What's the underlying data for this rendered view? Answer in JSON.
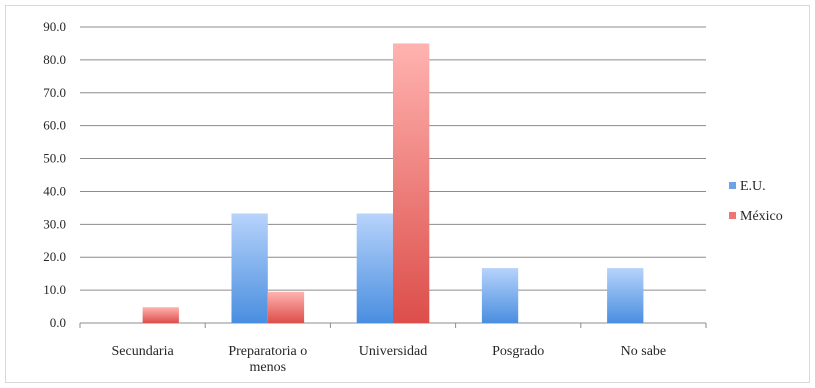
{
  "chart_data": {
    "type": "bar",
    "title": "",
    "xlabel": "",
    "ylabel": "",
    "categories": [
      "Secundaria",
      "Preparatoria o menos",
      "Universidad",
      "Posgrado",
      "No sabe"
    ],
    "category_lines": [
      [
        "Secundaria"
      ],
      [
        "Preparatoria o",
        "menos"
      ],
      [
        "Universidad"
      ],
      [
        "Posgrado"
      ],
      [
        "No sabe"
      ]
    ],
    "series": [
      {
        "name": "E.U.",
        "values": [
          0.0,
          33.3,
          33.3,
          16.7,
          16.7
        ],
        "color": "#6fa3e8"
      },
      {
        "name": "México",
        "values": [
          4.8,
          9.5,
          85.0,
          0.0,
          0.0
        ],
        "color": "#ef7673"
      }
    ],
    "ylim": [
      0,
      90
    ],
    "yticks": [
      "0.0",
      "10.0",
      "20.0",
      "30.0",
      "40.0",
      "50.0",
      "60.0",
      "70.0",
      "80.0",
      "90.0"
    ],
    "grid": true,
    "legend_position": "right"
  }
}
